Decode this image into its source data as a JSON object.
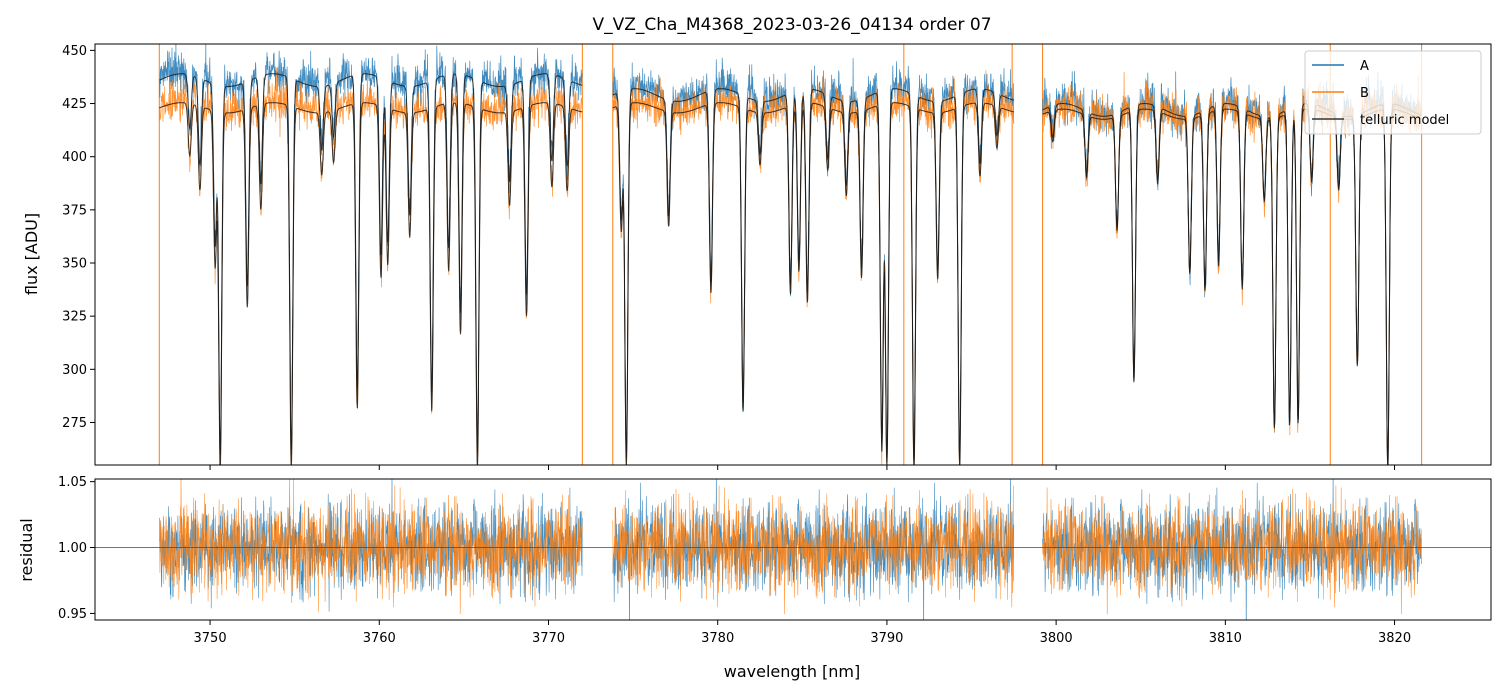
{
  "figure": {
    "title": "V_VZ_Cha_M4368_2023-03-26_04134  order 07"
  },
  "colors": {
    "A": "#1f77b4",
    "B": "#ff7f0e",
    "model": "#1a1a1a",
    "residual_ref": "#444444"
  },
  "chart_data": [
    {
      "type": "line",
      "panel": "flux",
      "title": "V_VZ_Cha_M4368_2023-03-26_04134  order 07",
      "xlabel": "",
      "ylabel": "flux [ADU]",
      "xlim": [
        3743.2,
        3825.7
      ],
      "ylim": [
        255,
        453
      ],
      "yticks": [
        275,
        300,
        325,
        350,
        375,
        400,
        425,
        450
      ],
      "xticks": [
        3750,
        3760,
        3770,
        3780,
        3790,
        3800,
        3810,
        3820
      ],
      "x_tick_labels_shown": false,
      "legend": {
        "position": "top-right",
        "entries": [
          "A",
          "B",
          "telluric model"
        ]
      },
      "segments": [
        {
          "x_start": 3747.0,
          "x_end": 3772.0,
          "continuum_A": 437,
          "continuum_B": 424,
          "continuum_model_A": 436,
          "continuum_model_B": 423
        },
        {
          "x_start": 3773.8,
          "x_end": 3797.5,
          "continuum_A": 430,
          "continuum_B": 424,
          "continuum_model_A": 429,
          "continuum_model_B": 423
        },
        {
          "x_start": 3799.2,
          "x_end": 3821.6,
          "continuum_A": 423,
          "continuum_B": 421,
          "continuum_model_A": 422,
          "continuum_model_B": 420
        }
      ],
      "absorption_lines": [
        {
          "x": 3748.1,
          "depth": 430
        },
        {
          "x": 3748.8,
          "depth": 405
        },
        {
          "x": 3749.4,
          "depth": 390
        },
        {
          "x": 3750.3,
          "depth": 355
        },
        {
          "x": 3750.6,
          "depth": 258
        },
        {
          "x": 3752.2,
          "depth": 335
        },
        {
          "x": 3753.0,
          "depth": 380
        },
        {
          "x": 3754.8,
          "depth": 258
        },
        {
          "x": 3756.6,
          "depth": 400
        },
        {
          "x": 3757.3,
          "depth": 405
        },
        {
          "x": 3758.7,
          "depth": 285
        },
        {
          "x": 3760.1,
          "depth": 348
        },
        {
          "x": 3760.5,
          "depth": 355
        },
        {
          "x": 3761.8,
          "depth": 370
        },
        {
          "x": 3763.1,
          "depth": 285
        },
        {
          "x": 3764.1,
          "depth": 350
        },
        {
          "x": 3764.8,
          "depth": 320
        },
        {
          "x": 3765.8,
          "depth": 258
        },
        {
          "x": 3767.7,
          "depth": 385
        },
        {
          "x": 3768.7,
          "depth": 330
        },
        {
          "x": 3770.2,
          "depth": 390
        },
        {
          "x": 3771.1,
          "depth": 390
        },
        {
          "x": 3774.3,
          "depth": 370
        },
        {
          "x": 3774.6,
          "depth": 258
        },
        {
          "x": 3777.1,
          "depth": 375
        },
        {
          "x": 3779.6,
          "depth": 340
        },
        {
          "x": 3781.5,
          "depth": 285
        },
        {
          "x": 3782.5,
          "depth": 405
        },
        {
          "x": 3784.3,
          "depth": 340
        },
        {
          "x": 3784.8,
          "depth": 350
        },
        {
          "x": 3785.3,
          "depth": 335
        },
        {
          "x": 3786.5,
          "depth": 400
        },
        {
          "x": 3787.6,
          "depth": 390
        },
        {
          "x": 3788.5,
          "depth": 350
        },
        {
          "x": 3789.7,
          "depth": 265
        },
        {
          "x": 3790.0,
          "depth": 258
        },
        {
          "x": 3791.6,
          "depth": 258
        },
        {
          "x": 3793.0,
          "depth": 350
        },
        {
          "x": 3794.3,
          "depth": 258
        },
        {
          "x": 3795.5,
          "depth": 395
        },
        {
          "x": 3796.5,
          "depth": 410
        },
        {
          "x": 3799.8,
          "depth": 415
        },
        {
          "x": 3801.8,
          "depth": 400
        },
        {
          "x": 3803.6,
          "depth": 375
        },
        {
          "x": 3804.6,
          "depth": 300
        },
        {
          "x": 3806.0,
          "depth": 395
        },
        {
          "x": 3807.9,
          "depth": 355
        },
        {
          "x": 3808.8,
          "depth": 345
        },
        {
          "x": 3809.6,
          "depth": 355
        },
        {
          "x": 3811.0,
          "depth": 345
        },
        {
          "x": 3812.3,
          "depth": 390
        },
        {
          "x": 3812.9,
          "depth": 280
        },
        {
          "x": 3813.8,
          "depth": 280
        },
        {
          "x": 3814.3,
          "depth": 280
        },
        {
          "x": 3815.1,
          "depth": 395
        },
        {
          "x": 3816.7,
          "depth": 395
        },
        {
          "x": 3817.8,
          "depth": 310
        },
        {
          "x": 3819.6,
          "depth": 258
        }
      ],
      "spike_lines_B": [
        3747.0,
        3772.0,
        3773.8,
        3791.0,
        3797.4,
        3799.2,
        3816.2,
        3821.6
      ],
      "series": [
        {
          "name": "A",
          "color": "#1f77b4"
        },
        {
          "name": "B",
          "color": "#ff7f0e"
        },
        {
          "name": "telluric model",
          "color": "#1a1a1a"
        }
      ]
    },
    {
      "type": "line",
      "panel": "residual",
      "xlabel": "wavelength [nm]",
      "ylabel": "residual",
      "xlim": [
        3743.2,
        3825.7
      ],
      "ylim": [
        0.945,
        1.052
      ],
      "yticks": [
        0.95,
        1.0,
        1.05
      ],
      "ytick_labels": [
        "0.95",
        "1.00",
        "1.05"
      ],
      "xticks": [
        3750,
        3760,
        3770,
        3780,
        3790,
        3800,
        3810,
        3820
      ],
      "xtick_labels": [
        "3750",
        "3760",
        "3770",
        "3780",
        "3790",
        "3800",
        "3810",
        "3820"
      ],
      "reference_line": 1.0,
      "noise_sigma": 0.018,
      "series": [
        {
          "name": "A",
          "color": "#1f77b4"
        },
        {
          "name": "B",
          "color": "#ff7f0e"
        }
      ]
    }
  ]
}
